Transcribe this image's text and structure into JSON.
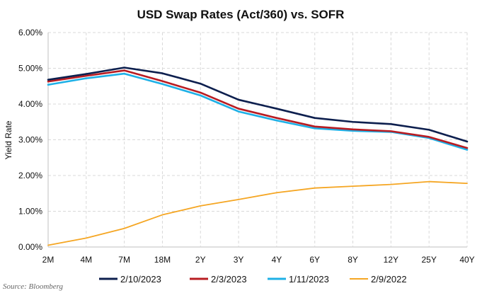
{
  "chart_data": {
    "type": "line",
    "title": "USD Swap Rates (Act/360) vs. SOFR",
    "ylabel": "Yield Rate",
    "xlabel": "",
    "categories": [
      "2M",
      "4M",
      "7M",
      "18M",
      "2Y",
      "3Y",
      "4Y",
      "6Y",
      "8Y",
      "12Y",
      "25Y",
      "40Y"
    ],
    "ylim": [
      0,
      6
    ],
    "yticks": [
      0,
      1,
      2,
      3,
      4,
      5,
      6
    ],
    "ytick_labels": [
      "0.00%",
      "1.00%",
      "2.00%",
      "3.00%",
      "4.00%",
      "5.00%",
      "6.00%"
    ],
    "grid": true,
    "legend_position": "bottom",
    "series": [
      {
        "name": "2/10/2023",
        "color": "#0d1f4e",
        "values": [
          4.68,
          4.84,
          5.02,
          4.86,
          4.57,
          4.12,
          3.87,
          3.61,
          3.5,
          3.44,
          3.28,
          2.95
        ]
      },
      {
        "name": "2/3/2023",
        "color": "#b81c22",
        "values": [
          4.63,
          4.79,
          4.94,
          4.64,
          4.32,
          3.87,
          3.61,
          3.37,
          3.29,
          3.24,
          3.08,
          2.77
        ]
      },
      {
        "name": "1/11/2023",
        "color": "#1eb0e6",
        "values": [
          4.54,
          4.72,
          4.85,
          4.56,
          4.24,
          3.79,
          3.54,
          3.32,
          3.25,
          3.22,
          3.05,
          2.72
        ]
      },
      {
        "name": "2/9/2022",
        "color": "#f5a623",
        "values": [
          0.05,
          0.25,
          0.52,
          0.9,
          1.15,
          1.33,
          1.52,
          1.65,
          1.7,
          1.75,
          1.83,
          1.78
        ]
      }
    ]
  },
  "source": "Source: Bloomberg"
}
